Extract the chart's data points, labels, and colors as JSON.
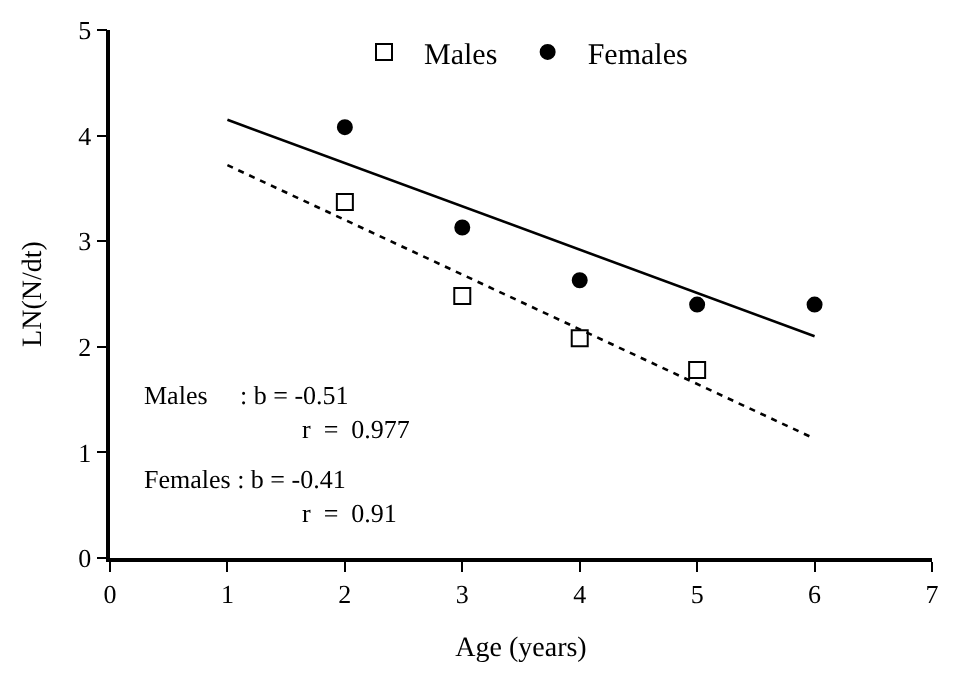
{
  "chart_data": {
    "type": "scatter",
    "xlabel": "Age (years)",
    "ylabel": "LN(N/dt)",
    "xlim": [
      0,
      7
    ],
    "xticks": [
      0,
      1,
      2,
      3,
      4,
      5,
      6,
      7
    ],
    "ylim": [
      0,
      5
    ],
    "yticks": [
      0,
      1,
      2,
      3,
      4,
      5
    ],
    "legend": "top",
    "series": [
      {
        "name": "Males",
        "marker": "square-open",
        "color": "#000000",
        "x": [
          2,
          3,
          4,
          5
        ],
        "values": [
          3.37,
          2.48,
          2.08,
          1.78
        ]
      },
      {
        "name": "Females",
        "marker": "circle",
        "color": "#000000",
        "x": [
          2,
          3,
          4,
          5,
          6
        ],
        "values": [
          4.08,
          3.13,
          2.63,
          2.4,
          2.4
        ]
      },
      {
        "type": "line",
        "line_style": "dotted",
        "marker": "none",
        "color": "#000000",
        "x": [
          1,
          6
        ],
        "values": [
          3.72,
          1.13
        ]
      },
      {
        "type": "line",
        "line_style": "solid",
        "marker": "none",
        "color": "#000000",
        "x": [
          1,
          6
        ],
        "values": [
          4.15,
          2.1
        ]
      }
    ],
    "annotations": [
      "Males     : b = -0.51",
      "r  =  0.977",
      "Females : b = -0.41",
      "r  =  0.91"
    ]
  }
}
